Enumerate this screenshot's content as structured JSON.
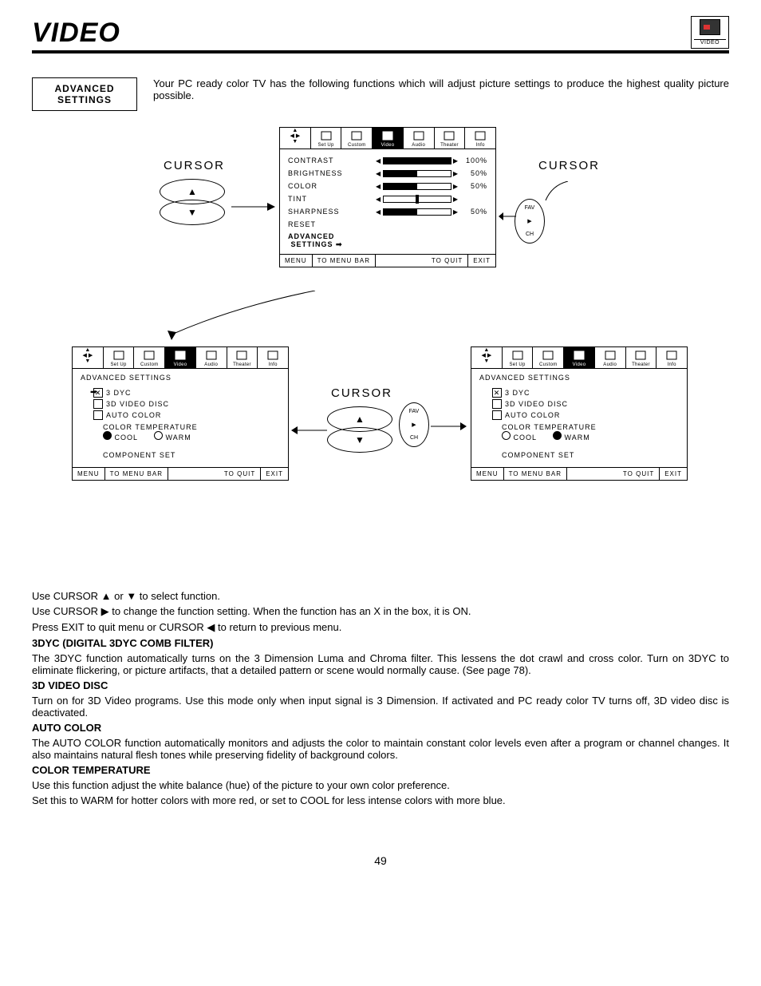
{
  "page": {
    "title": "VIDEO",
    "icon_label": "VIDEO",
    "number": "49"
  },
  "intro": {
    "box_line1": "ADVANCED",
    "box_line2": "SETTINGS",
    "text": "Your PC ready color TV has the following functions which will adjust picture settings to produce the highest quality picture possible."
  },
  "menubar": {
    "items": [
      "Set Up",
      "Custom",
      "Video",
      "Audio",
      "Theater",
      "Info"
    ],
    "selected_index": 2
  },
  "main_panel": {
    "rows": [
      {
        "label": "CONTRAST",
        "value": "100%",
        "fill_pct": 100,
        "type": "fill"
      },
      {
        "label": "BRIGHTNESS",
        "value": "50%",
        "fill_pct": 50,
        "type": "fill"
      },
      {
        "label": "COLOR",
        "value": "50%",
        "fill_pct": 50,
        "type": "fill"
      },
      {
        "label": "TINT",
        "value": "",
        "fill_pct": 50,
        "type": "marker"
      },
      {
        "label": "SHARPNESS",
        "value": "50%",
        "fill_pct": 50,
        "type": "fill"
      }
    ],
    "reset": "RESET",
    "adv1": "ADVANCED",
    "adv2": "SETTINGS",
    "footer": {
      "menu": "MENU",
      "tomenu": "TO MENU BAR",
      "toquit": "TO QUIT",
      "exit": "EXIT"
    }
  },
  "adv_panel": {
    "heading": "ADVANCED SETTINGS",
    "items": [
      {
        "label": "3 DYC",
        "checked": true
      },
      {
        "label": "3D VIDEO DISC",
        "checked": false
      },
      {
        "label": "AUTO COLOR",
        "checked": false
      }
    ],
    "color_temp_label": "COLOR TEMPERATURE",
    "cool": "COOL",
    "warm": "WARM",
    "left_cool_filled": true,
    "left_warm_filled": false,
    "right_cool_filled": false,
    "right_warm_filled": true,
    "component": "COMPONENT SET",
    "footer": {
      "menu": "MENU",
      "tomenu": "TO MENU BAR",
      "toquit": "TO QUIT",
      "exit": "EXIT"
    }
  },
  "labels": {
    "cursor": "CURSOR",
    "fav": "FAV",
    "ch": "CH"
  },
  "instructions": {
    "l1": "Use CURSOR ▲ or ▼ to select function.",
    "l2": "Use CURSOR ▶ to change the function setting. When the function has an  X  in the box, it is ON.",
    "l3": "Press EXIT to quit menu or CURSOR ◀ to return to previous menu."
  },
  "sections": {
    "s1h": "3DYC (DIGITAL 3DYC COMB FILTER)",
    "s1": "The 3DYC function automatically turns on the 3 Dimension Luma and Chroma filter. This lessens the dot crawl and cross color. Turn on 3DYC to eliminate flickering, or picture artifacts, that a detailed pattern or scene would normally cause. (See page 78).",
    "s2h": "3D VIDEO DISC",
    "s2": "Turn on for 3D Video programs. Use this mode only when input signal is 3 Dimension. If activated and PC ready color TV turns off, 3D video disc is deactivated.",
    "s3h": "AUTO COLOR",
    "s3": "The AUTO COLOR function automatically monitors and adjusts the color to maintain constant color levels even after a program or channel changes. It also maintains natural flesh tones while preserving fidelity of background colors.",
    "s4h": "COLOR TEMPERATURE",
    "s4a": "Use this function adjust the white balance (hue) of the picture to your own color preference.",
    "s4b": "Set this to WARM for hotter colors with more red, or set to COOL for less intense colors with more blue."
  }
}
